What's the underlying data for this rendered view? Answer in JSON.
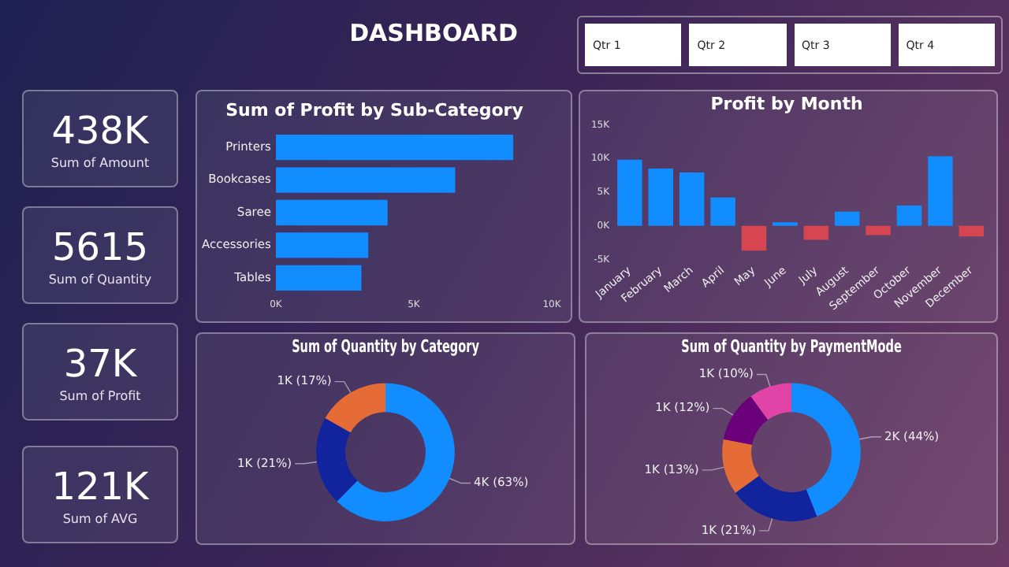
{
  "chart_data": [
    {
      "type": "other",
      "title": "DASHBOARD",
      "annotations": [
        "Qtr 1",
        "Qtr 2",
        "Qtr 3",
        "Qtr 4"
      ]
    },
    {
      "type": "other",
      "title": "Sum of Amount",
      "annotations": [
        "438K"
      ]
    },
    {
      "type": "other",
      "title": "Sum of Quantity",
      "annotations": [
        "5615"
      ]
    },
    {
      "type": "other",
      "title": "Sum of Profit",
      "annotations": [
        "37K"
      ]
    },
    {
      "type": "other",
      "title": "Sum of AVG",
      "annotations": [
        "121K"
      ]
    },
    {
      "type": "bar",
      "title": "Sum of Profit by Sub-Category",
      "orientation": "horizontal",
      "categories": [
        "Printers",
        "Bookcases",
        "Saree",
        "Accessories",
        "Tables"
      ],
      "values": [
        8600,
        6500,
        4050,
        3350,
        3100
      ],
      "color": "#118dff",
      "xlim": [
        0,
        10000
      ],
      "xticks": [
        {
          "value": 0,
          "label": "0K"
        },
        {
          "value": 5000,
          "label": "5K"
        },
        {
          "value": 10000,
          "label": "10K"
        }
      ],
      "grid": false,
      "legend": false
    },
    {
      "type": "bar",
      "title": "Profit by Month",
      "categories": [
        "January",
        "February",
        "March",
        "April",
        "May",
        "June",
        "July",
        "August",
        "September",
        "October",
        "November",
        "December"
      ],
      "values": [
        9800,
        8500,
        7900,
        4200,
        -3700,
        500,
        -2100,
        2100,
        -1400,
        3000,
        10300,
        -1600
      ],
      "colors": [
        "#118dff",
        "#118dff",
        "#118dff",
        "#118dff",
        "#d64550",
        "#118dff",
        "#d64550",
        "#118dff",
        "#d64550",
        "#118dff",
        "#118dff",
        "#d64550"
      ],
      "ylim": [
        -5000,
        15000
      ],
      "yticks": [
        {
          "value": -5000,
          "label": "-5K"
        },
        {
          "value": 0,
          "label": "0K"
        },
        {
          "value": 5000,
          "label": "5K"
        },
        {
          "value": 10000,
          "label": "10K"
        },
        {
          "value": 15000,
          "label": "15K"
        }
      ],
      "grid": false,
      "legend": false
    },
    {
      "type": "donut",
      "title": "Sum of Quantity by Category",
      "categories": [
        null,
        null,
        null
      ],
      "values": [
        63,
        21,
        17
      ],
      "colors": [
        "#118dff",
        "#12239e",
        "#e66c37"
      ],
      "value_labels": [
        "4K (63%)",
        "1K (21%)",
        "1K (17%)"
      ],
      "legend": false
    },
    {
      "type": "donut",
      "title": "Sum of Quantity by PaymentMode",
      "categories": [
        null,
        null,
        null,
        null,
        null
      ],
      "values": [
        44,
        21,
        13,
        12,
        10
      ],
      "colors": [
        "#118dff",
        "#12239e",
        "#e66c37",
        "#6b007b",
        "#e044a7"
      ],
      "value_labels": [
        "2K (44%)",
        "1K (21%)",
        "1K (13%)",
        "1K (12%)",
        "1K (10%)"
      ],
      "legend": false
    }
  ]
}
